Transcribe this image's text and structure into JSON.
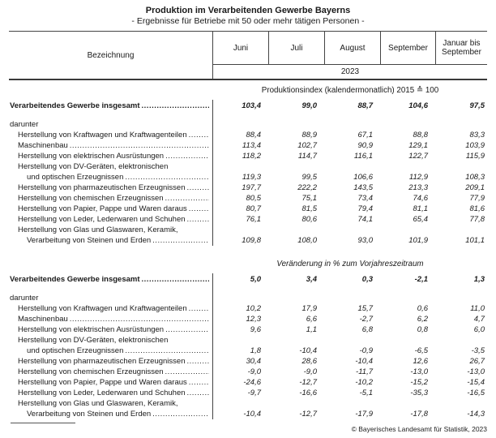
{
  "title": "Produktion im Verarbeitenden Gewerbe Bayerns",
  "subtitle": "- Ergebnisse für Betriebe mit 50 oder mehr tätigen Personen -",
  "table": {
    "label_column_header": "Bezeichnung",
    "month_columns": [
      "Juni",
      "Juli",
      "August",
      "September",
      "Januar bis September"
    ],
    "year": "2023",
    "sections": [
      {
        "header": "Produktionsindex (kalendermonatlich) 2015 ≙ 100",
        "header_italic": false,
        "total_row": {
          "label": "Verarbeitendes Gewerbe insgesamt",
          "values": [
            "103,4",
            "99,0",
            "88,7",
            "104,6",
            "97,5"
          ]
        },
        "group_label": "darunter",
        "rows": [
          {
            "label": "Herstellung von Kraftwagen und Kraftwagenteilen",
            "indent": 1,
            "leader": true,
            "values": [
              "88,4",
              "88,9",
              "67,1",
              "88,8",
              "83,3"
            ]
          },
          {
            "label": "Maschinenbau",
            "indent": 1,
            "leader": true,
            "values": [
              "113,4",
              "102,7",
              "90,9",
              "129,1",
              "103,9"
            ]
          },
          {
            "label": "Herstellung von elektrischen Ausrüstungen",
            "indent": 1,
            "leader": true,
            "values": [
              "118,2",
              "114,7",
              "116,1",
              "122,7",
              "115,9"
            ]
          },
          {
            "label": "Herstellung von DV-Geräten, elektronischen",
            "indent": 1,
            "leader": false,
            "values": null
          },
          {
            "label": "und optischen Erzeugnissen",
            "indent": 2,
            "leader": true,
            "values": [
              "119,3",
              "99,5",
              "106,6",
              "112,9",
              "108,3"
            ]
          },
          {
            "label": "Herstellung von pharmazeutischen Erzeugnissen",
            "indent": 1,
            "leader": true,
            "values": [
              "197,7",
              "222,2",
              "143,5",
              "213,3",
              "209,1"
            ]
          },
          {
            "label": "Herstellung von chemischen Erzeugnissen",
            "indent": 1,
            "leader": true,
            "values": [
              "80,5",
              "75,1",
              "73,4",
              "74,6",
              "77,9"
            ]
          },
          {
            "label": "Herstellung von Papier, Pappe und Waren daraus",
            "indent": 1,
            "leader": true,
            "values": [
              "80,7",
              "81,5",
              "79,4",
              "81,1",
              "81,6"
            ]
          },
          {
            "label": "Herstellung von Leder, Lederwaren und Schuhen",
            "indent": 1,
            "leader": true,
            "values": [
              "76,1",
              "80,6",
              "74,1",
              "65,4",
              "77,8"
            ]
          },
          {
            "label": "Herstellung von Glas und Glaswaren, Keramik,",
            "indent": 1,
            "leader": false,
            "values": null
          },
          {
            "label": "Verarbeitung von Steinen und Erden",
            "indent": 2,
            "leader": true,
            "values": [
              "109,8",
              "108,0",
              "93,0",
              "101,9",
              "101,1"
            ]
          }
        ]
      },
      {
        "header": "Veränderung in % zum Vorjahreszeitraum",
        "header_italic": true,
        "total_row": {
          "label": "Verarbeitendes Gewerbe insgesamt",
          "values": [
            "5,0",
            "3,4",
            "0,3",
            "-2,1",
            "1,3"
          ]
        },
        "group_label": "darunter",
        "rows": [
          {
            "label": "Herstellung von Kraftwagen und Kraftwagenteilen",
            "indent": 1,
            "leader": true,
            "values": [
              "10,2",
              "17,9",
              "15,7",
              "0,6",
              "11,0"
            ]
          },
          {
            "label": "Maschinenbau",
            "indent": 1,
            "leader": true,
            "values": [
              "12,3",
              "6,6",
              "-2,7",
              "6,2",
              "4,7"
            ]
          },
          {
            "label": "Herstellung von elektrischen Ausrüstungen",
            "indent": 1,
            "leader": true,
            "values": [
              "9,6",
              "1,1",
              "6,8",
              "0,8",
              "6,0"
            ]
          },
          {
            "label": "Herstellung von DV-Geräten, elektronischen",
            "indent": 1,
            "leader": false,
            "values": null
          },
          {
            "label": "und optischen Erzeugnissen",
            "indent": 2,
            "leader": true,
            "values": [
              "1,8",
              "-10,4",
              "-0,9",
              "-6,5",
              "-3,5"
            ]
          },
          {
            "label": "Herstellung von pharmazeutischen Erzeugnissen",
            "indent": 1,
            "leader": true,
            "values": [
              "30,4",
              "28,6",
              "-10,4",
              "12,6",
              "26,7"
            ]
          },
          {
            "label": "Herstellung von chemischen Erzeugnissen",
            "indent": 1,
            "leader": true,
            "values": [
              "-9,0",
              "-9,0",
              "-11,7",
              "-13,0",
              "-13,0"
            ]
          },
          {
            "label": "Herstellung von Papier, Pappe und Waren daraus",
            "indent": 1,
            "leader": true,
            "values": [
              "-24,6",
              "-12,7",
              "-10,2",
              "-15,2",
              "-15,4"
            ]
          },
          {
            "label": "Herstellung von Leder, Lederwaren und Schuhen",
            "indent": 1,
            "leader": true,
            "values": [
              "-9,7",
              "-16,6",
              "-5,1",
              "-35,3",
              "-16,5"
            ]
          },
          {
            "label": "Herstellung von Glas und Glaswaren, Keramik,",
            "indent": 1,
            "leader": false,
            "values": null
          },
          {
            "label": "Verarbeitung von Steinen und Erden",
            "indent": 2,
            "leader": true,
            "values": [
              "-10,4",
              "-12,7",
              "-17,9",
              "-17,8",
              "-14,3"
            ]
          }
        ]
      }
    ]
  },
  "footer": {
    "copyright": "© Bayerisches Landesamt für Statistik, 2023"
  }
}
